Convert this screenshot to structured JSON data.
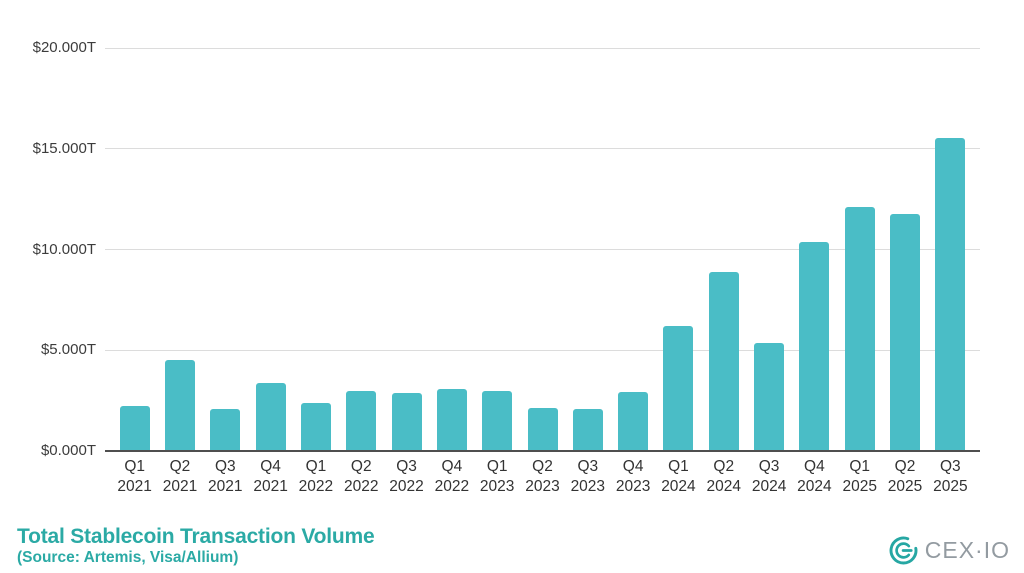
{
  "chart_data": {
    "type": "bar",
    "title": "Total Stablecoin Transaction Volume",
    "source_note": "(Source: Artemis, Visa/Allium)",
    "categories": [
      {
        "quarter": "Q1",
        "year": "2021"
      },
      {
        "quarter": "Q2",
        "year": "2021"
      },
      {
        "quarter": "Q3",
        "year": "2021"
      },
      {
        "quarter": "Q4",
        "year": "2021"
      },
      {
        "quarter": "Q1",
        "year": "2022"
      },
      {
        "quarter": "Q2",
        "year": "2022"
      },
      {
        "quarter": "Q3",
        "year": "2022"
      },
      {
        "quarter": "Q4",
        "year": "2022"
      },
      {
        "quarter": "Q1",
        "year": "2023"
      },
      {
        "quarter": "Q2",
        "year": "2023"
      },
      {
        "quarter": "Q3",
        "year": "2023"
      },
      {
        "quarter": "Q4",
        "year": "2023"
      },
      {
        "quarter": "Q1",
        "year": "2024"
      },
      {
        "quarter": "Q2",
        "year": "2024"
      },
      {
        "quarter": "Q3",
        "year": "2024"
      },
      {
        "quarter": "Q4",
        "year": "2024"
      },
      {
        "quarter": "Q1",
        "year": "2025"
      },
      {
        "quarter": "Q2",
        "year": "2025"
      },
      {
        "quarter": "Q3",
        "year": "2025"
      }
    ],
    "values": [
      2.25,
      4.5,
      2.1,
      3.35,
      2.4,
      3.0,
      2.9,
      3.1,
      3.0,
      2.15,
      2.1,
      2.95,
      6.2,
      8.9,
      5.35,
      10.35,
      12.1,
      11.75,
      15.55
    ],
    "yticks": [
      {
        "value": 0,
        "label": "$0.000T"
      },
      {
        "value": 5,
        "label": "$5.000T"
      },
      {
        "value": 10,
        "label": "$10.000T"
      },
      {
        "value": 15,
        "label": "$15.000T"
      },
      {
        "value": 20,
        "label": "$20.000T"
      }
    ],
    "ylim": [
      0,
      20
    ],
    "grid": true,
    "legend": false,
    "bar_color": "#4abdc6",
    "gridline_color": "#dcdcdc",
    "axis_line_color": "#4f4f4f"
  },
  "footer": {
    "title": "Total Stablecoin Transaction Volume",
    "source": "(Source: Artemis, Visa/Allium)"
  },
  "logo": {
    "text": "CEX·IO",
    "icon_color": "#26a7a3",
    "text_color": "#939ba1"
  }
}
